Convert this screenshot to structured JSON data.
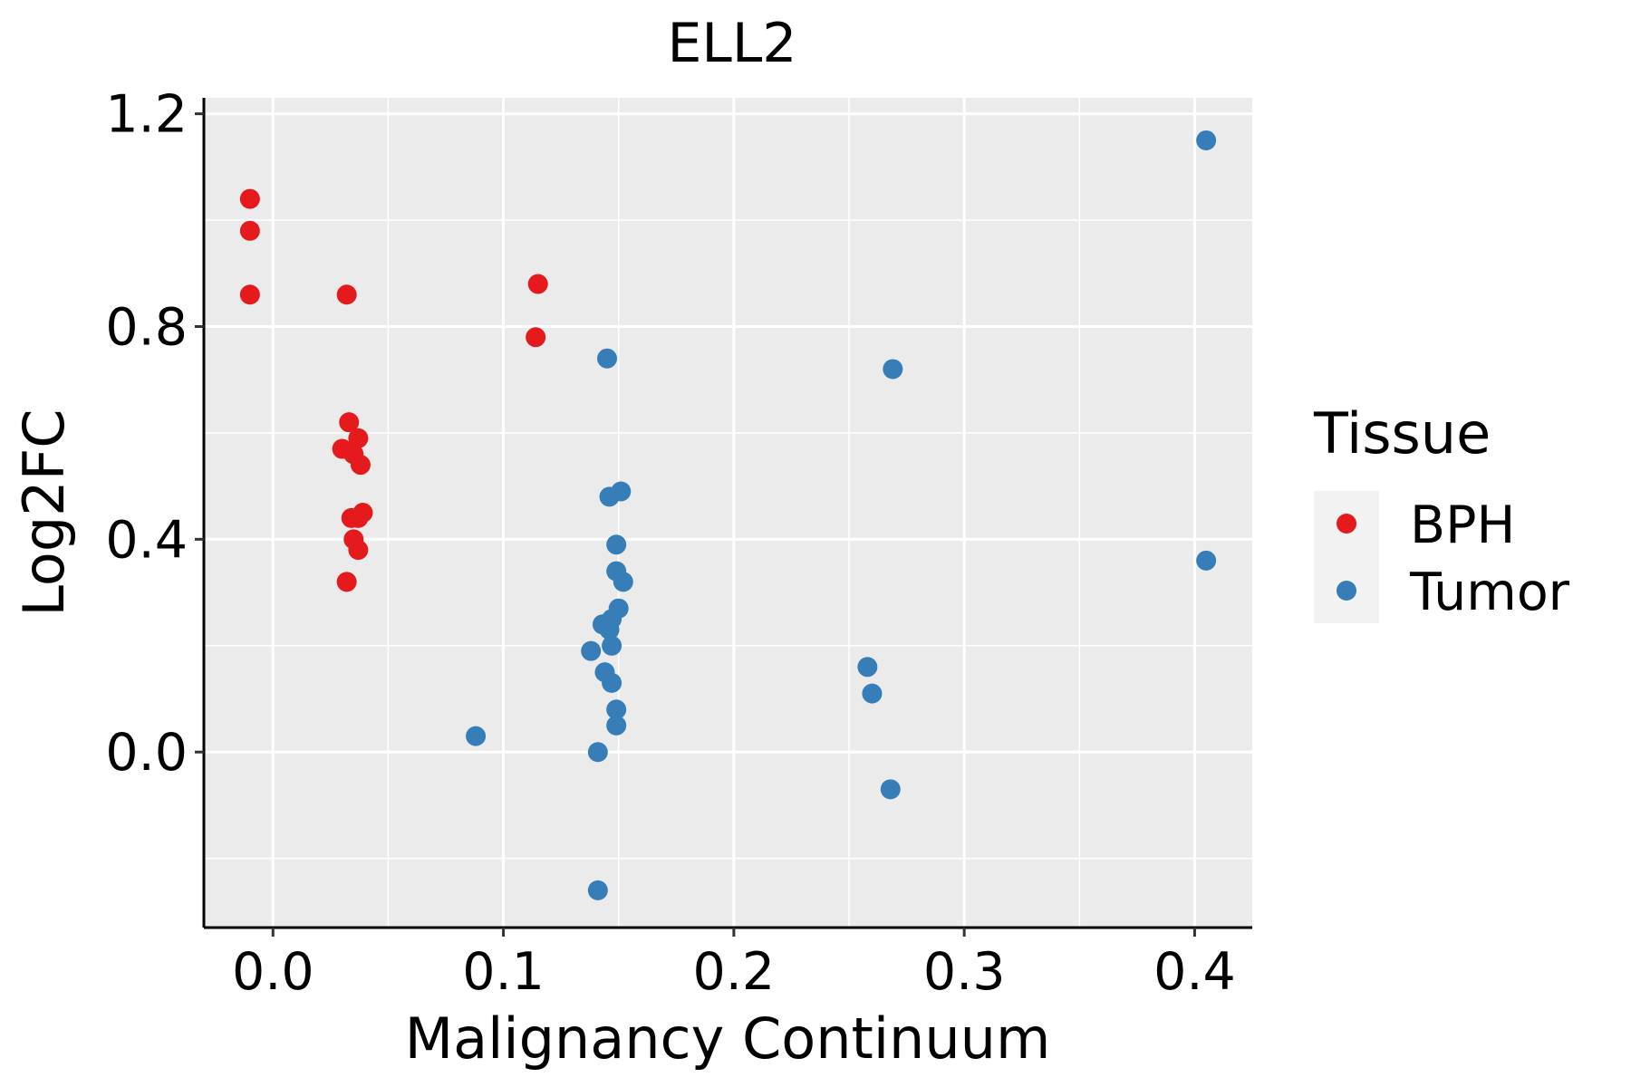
{
  "chart_data": {
    "type": "scatter",
    "title": "ELL2",
    "xlabel": "Malignancy Continuum",
    "ylabel": "Log2FC",
    "xlim": [
      -0.03,
      0.425
    ],
    "ylim": [
      -0.33,
      1.23
    ],
    "x_ticks": [
      0.0,
      0.1,
      0.2,
      0.3,
      0.4
    ],
    "x_tick_labels": [
      "0.0",
      "0.1",
      "0.2",
      "0.3",
      "0.4"
    ],
    "y_ticks": [
      0.0,
      0.4,
      0.8,
      1.2
    ],
    "y_tick_labels": [
      "0.0",
      "0.4",
      "0.8",
      "1.2"
    ],
    "grid": true,
    "legend": {
      "title": "Tissue",
      "position": "right",
      "entries": [
        "BPH",
        "Tumor"
      ]
    },
    "series": [
      {
        "name": "BPH",
        "color": "#E41A1C",
        "points": [
          [
            -0.01,
            1.04
          ],
          [
            -0.01,
            0.98
          ],
          [
            -0.01,
            0.86
          ],
          [
            0.032,
            0.86
          ],
          [
            0.115,
            0.88
          ],
          [
            0.114,
            0.78
          ],
          [
            0.033,
            0.62
          ],
          [
            0.037,
            0.59
          ],
          [
            0.03,
            0.57
          ],
          [
            0.035,
            0.56
          ],
          [
            0.038,
            0.54
          ],
          [
            0.039,
            0.45
          ],
          [
            0.037,
            0.44
          ],
          [
            0.034,
            0.44
          ],
          [
            0.035,
            0.4
          ],
          [
            0.037,
            0.38
          ],
          [
            0.032,
            0.32
          ]
        ]
      },
      {
        "name": "Tumor",
        "color": "#377EB8",
        "points": [
          [
            0.405,
            1.15
          ],
          [
            0.145,
            0.74
          ],
          [
            0.269,
            0.72
          ],
          [
            0.151,
            0.49
          ],
          [
            0.146,
            0.48
          ],
          [
            0.149,
            0.39
          ],
          [
            0.405,
            0.36
          ],
          [
            0.149,
            0.34
          ],
          [
            0.152,
            0.32
          ],
          [
            0.15,
            0.27
          ],
          [
            0.147,
            0.25
          ],
          [
            0.143,
            0.24
          ],
          [
            0.146,
            0.23
          ],
          [
            0.147,
            0.2
          ],
          [
            0.138,
            0.19
          ],
          [
            0.258,
            0.16
          ],
          [
            0.144,
            0.15
          ],
          [
            0.147,
            0.13
          ],
          [
            0.26,
            0.11
          ],
          [
            0.149,
            0.08
          ],
          [
            0.149,
            0.05
          ],
          [
            0.088,
            0.03
          ],
          [
            0.141,
            0.0
          ],
          [
            0.268,
            -0.07
          ],
          [
            0.141,
            -0.26
          ]
        ]
      }
    ]
  }
}
